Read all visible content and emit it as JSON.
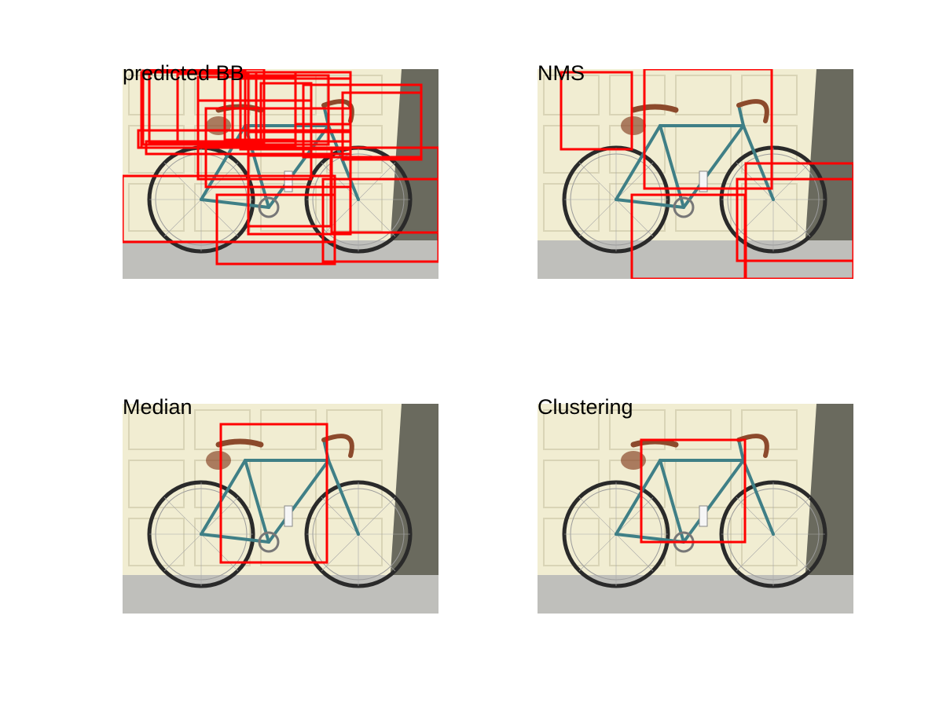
{
  "figure": {
    "box_color": "#ff0000",
    "scene": {
      "wall_color": "#f1edd2",
      "shadow_color": "#6a6a5e",
      "ground_color": "#bfbfbb",
      "frame_color": "#3f7f86",
      "saddle_color": "#8c4a2c",
      "tire_color": "#2a2a2a"
    },
    "panels": [
      {
        "title": "predicted BB",
        "box_count": 22
      },
      {
        "title": "NMS",
        "box_count": 5
      },
      {
        "title": "Median",
        "box_count": 1
      },
      {
        "title": "Clustering",
        "box_count": 1
      }
    ]
  }
}
